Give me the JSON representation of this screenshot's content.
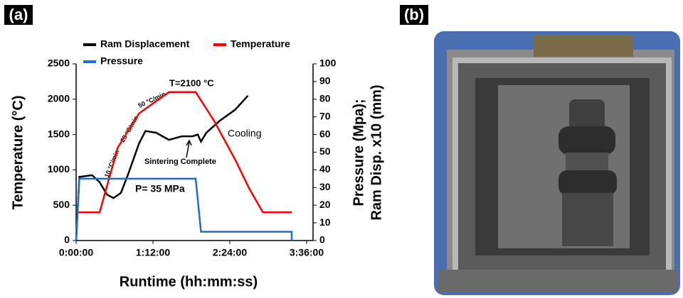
{
  "panel_labels": [
    "(a)",
    "(b)"
  ],
  "chart_data": {
    "type": "line",
    "xlabel": "Runtime (hh:mm:ss)",
    "ylabel": "Temperature (°C)",
    "y2label": [
      "Pressure (Mpa);",
      "Ram Disp. x10 (mm)"
    ],
    "xlim": [
      0,
      222
    ],
    "xticks": [
      {
        "value": 0,
        "label": "0:00:00"
      },
      {
        "value": 72,
        "label": "1:12:00"
      },
      {
        "value": 144,
        "label": "2:24:00"
      },
      {
        "value": 216,
        "label": "3:36:00"
      }
    ],
    "ylim": [
      0,
      2500
    ],
    "yticks": [
      0,
      500,
      1000,
      1500,
      2000,
      2500
    ],
    "y2lim": [
      0,
      100
    ],
    "y2ticks": [
      0,
      10,
      20,
      30,
      40,
      50,
      60,
      70,
      80,
      90,
      100
    ],
    "series": [
      {
        "name": "Ram Displacement",
        "color": "#000000",
        "axis": "y2",
        "x": [
          0,
          3,
          15,
          22,
          29,
          35,
          42,
          49,
          59,
          65,
          75,
          87,
          99,
          109,
          114,
          117,
          122,
          135,
          149,
          161
        ],
        "values": [
          0,
          36,
          37,
          33,
          26,
          24,
          27,
          38,
          55,
          62,
          61,
          57,
          59,
          59,
          60,
          56,
          61,
          68,
          74,
          82
        ]
      },
      {
        "name": "Temperature",
        "color": "#ff0000",
        "x": [
          0,
          22,
          39,
          59,
          87,
          112,
          129,
          149,
          162,
          175,
          202
        ],
        "values": [
          400,
          400,
          1315,
          1800,
          2100,
          2100,
          1700,
          1145,
          740,
          400,
          400
        ]
      },
      {
        "name": "Pressure",
        "color": "#1f6fc5",
        "axis": "y2",
        "x": [
          0,
          3,
          112,
          117,
          202,
          202
        ],
        "values": [
          0,
          35,
          35,
          5,
          5,
          0
        ]
      }
    ],
    "annotations": [
      "T=2100 °C",
      "10 °C/min",
      "25 °C/min",
      "50 °C/min",
      "Sintering Complete",
      "Cooling",
      "P= 35 MPa"
    ]
  }
}
